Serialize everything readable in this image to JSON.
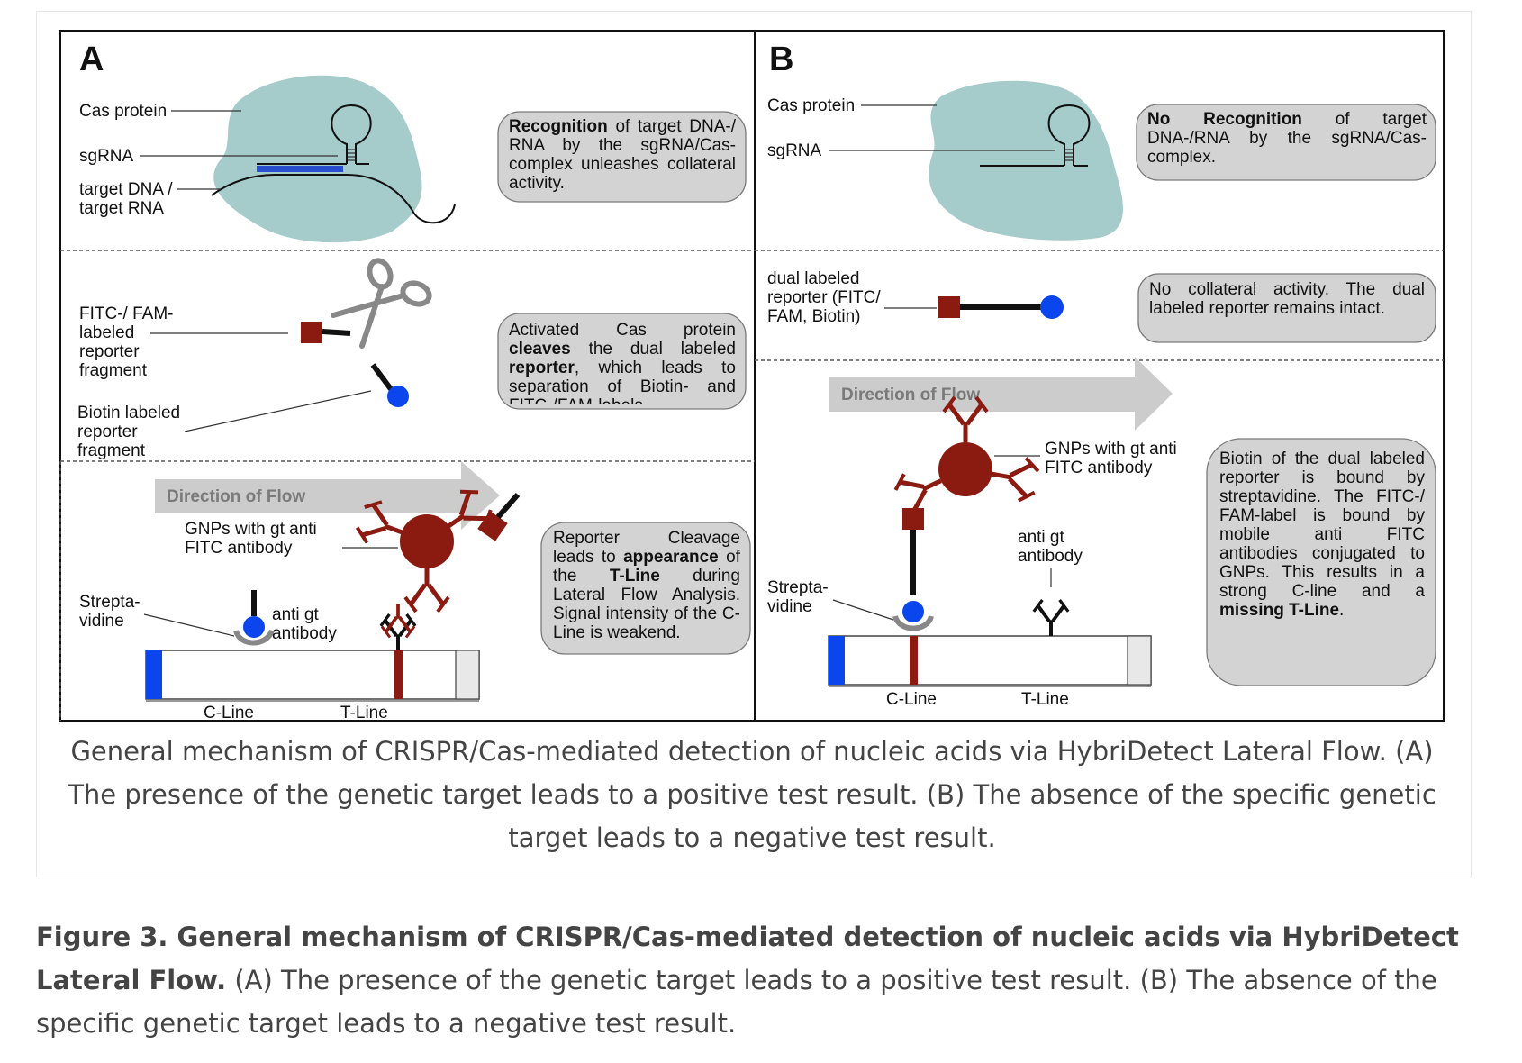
{
  "panels": {
    "a": {
      "letter": "A",
      "labels": {
        "cas_protein": "Cas protein",
        "sgrna": "sgRNA",
        "target_line1": "target DNA /",
        "target_line2": "target RNA",
        "fitc_line1": "FITC-/ FAM-",
        "fitc_line2": "labeled",
        "fitc_line3": "reporter",
        "fitc_line4": "fragment",
        "biotin_line1": "Biotin labeled",
        "biotin_line2": "reporter",
        "biotin_line3": "fragment",
        "flow": "Direction of Flow",
        "gnp_line1": "GNPs with gt anti",
        "gnp_line2": "FITC antibody",
        "strep_line1": "Strepta-",
        "strep_line2": "vidine",
        "antigt_line1": "anti gt",
        "antigt_line2": "antibody",
        "cline": "C-Line",
        "tline": "T-Line"
      },
      "bubble1": {
        "bold": "Recognition",
        "text": " of target DNA-/ RNA by the sgRNA/Cas-complex unleashes collateral activity."
      },
      "bubble2": {
        "pre": "Activated Cas protein ",
        "bold1": "cleaves",
        "mid": " the dual labeled ",
        "bold2": "reporter",
        "post": ", which leads to separation of Biotin- and FITC-/FAM-labels."
      },
      "bubble3": {
        "pre": "Reporter Cleavage leads to ",
        "bold1": "appearance",
        "mid": " of the ",
        "bold2": "T-Line",
        "post": " during Lateral Flow Analysis. Signal intensity of the C-Line is weakend."
      }
    },
    "b": {
      "letter": "B",
      "labels": {
        "cas_protein": "Cas protein",
        "sgrna": "sgRNA",
        "dual_line1": "dual labeled",
        "dual_line2": "reporter (FITC/",
        "dual_line3": "FAM, Biotin)",
        "flow": "Direction of Flow",
        "gnp_line1": "GNPs with gt anti",
        "gnp_line2": "FITC antibody",
        "antigt_line1": "anti gt",
        "antigt_line2": "antibody",
        "strep_line1": "Strepta-",
        "strep_line2": "vidine",
        "cline": "C-Line",
        "tline": "T-Line"
      },
      "bubble1": {
        "bold": "No Recognition",
        "text": " of target DNA-/RNA by the sgRNA/Cas-complex."
      },
      "bubble2": {
        "text": "No collateral activity. The dual labeled reporter remains intact."
      },
      "bubble3": {
        "pre": "Biotin of the dual labeled reporter is bound by streptavidine. The FITC-/ FAM-label is bound by mobile anti FITC antibodies conjugated to GNPs. This results in a strong C-line and a ",
        "bold": "missing T-Line",
        "post": "."
      }
    }
  },
  "colors": {
    "cas": "#a5cbcb",
    "reporter_red": "#8b1a10",
    "biotin_blue": "#0b45ee",
    "bubble": "#d3d3d3",
    "flow_arrow": "#cccccc",
    "cline_blue": "#0b45ee"
  },
  "inner_caption": "General mechanism of CRISPR/Cas-mediated detection of nucleic acids via HybriDetect Lateral Flow. (A) The presence of the genetic target leads to a positive test result. (B) The absence of the specific genetic target leads to a negative test result.",
  "figure_caption": {
    "title": "Figure 3. General mechanism of CRISPR/Cas-mediated detection of nucleic acids via HybriDetect Lateral Flow.",
    "text": " (A) The presence of the genetic target leads to a positive test result. (B) The absence of the specific genetic target leads to a negative test result."
  }
}
